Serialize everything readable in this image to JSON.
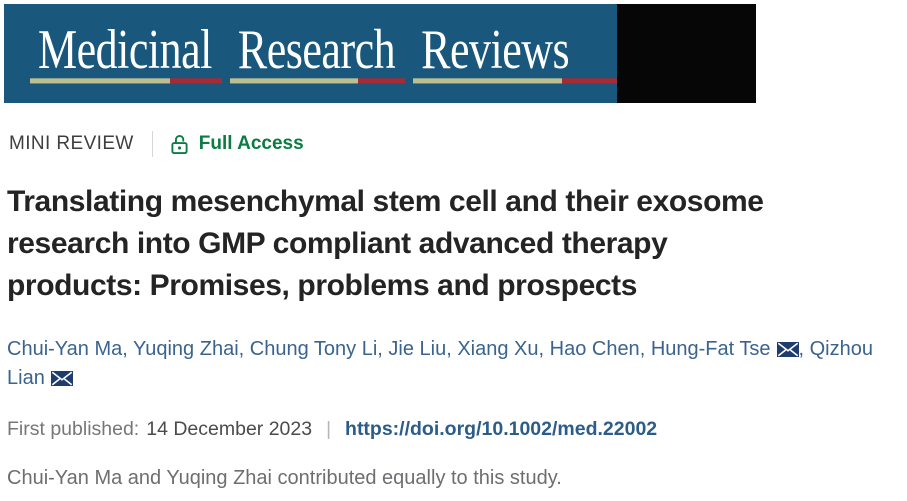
{
  "banner": {
    "journal_title": "Medicinal Research Reviews",
    "words": [
      "Medicinal",
      "Research",
      "Reviews"
    ]
  },
  "meta": {
    "article_type": "MINI REVIEW",
    "access_label": "Full Access",
    "lock_icon": "open-padlock-icon"
  },
  "article": {
    "title": "Translating mesenchymal stem cell and their exosome research into GMP compliant advanced therapy products: Promises, problems and prospects",
    "title_lines": [
      "Translating mesenchymal stem cell and their exosome",
      "research into GMP compliant advanced therapy",
      "products: Promises, problems and prospects"
    ],
    "authors": [
      {
        "name": "Chui-Yan Ma",
        "email_icon": false
      },
      {
        "name": "Yuqing Zhai",
        "email_icon": false
      },
      {
        "name": "Chung Tony Li",
        "email_icon": false
      },
      {
        "name": "Jie Liu",
        "email_icon": false
      },
      {
        "name": "Xiang Xu",
        "email_icon": false
      },
      {
        "name": "Hao Chen",
        "email_icon": false
      },
      {
        "name": "Hung-Fat Tse",
        "email_icon": true
      },
      {
        "name": "Qizhou Lian",
        "email_icon": true
      }
    ],
    "first_published_label": "First published:",
    "first_published_date": "14 December 2023",
    "divider": "|",
    "doi_url": "https://doi.org/10.1002/med.22002",
    "contribution_note": "Chui-Yan Ma and Yuqing Zhai contributed equally to this study."
  },
  "colors": {
    "banner_blue": "#19587c",
    "banner_underline_khaki": "#bcbf90",
    "banner_accent_red": "#a62b34",
    "access_green": "#0b7c43",
    "author_blue": "#3a648f",
    "envelope_navy": "#1e3d6e",
    "doi_blue": "#2c5d8a",
    "title_color": "#242424"
  }
}
